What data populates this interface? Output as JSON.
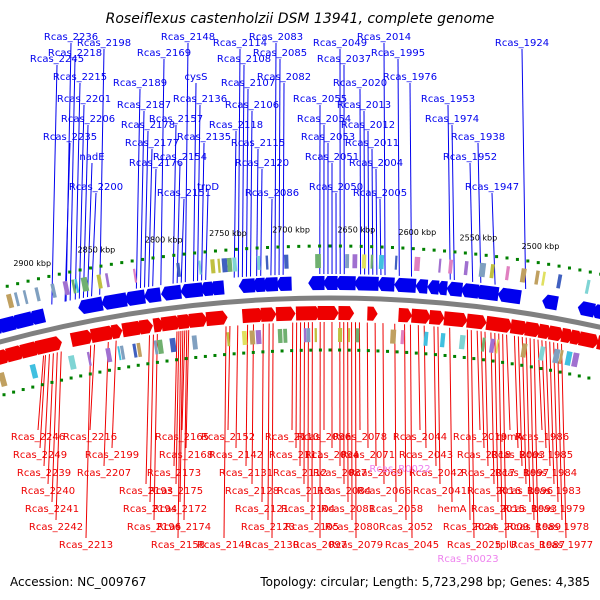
{
  "title": "Roseiflexus castenholzii DSM 13941, complete genome",
  "accession": "Accession: NC_009767",
  "summary": "Topology: circular; Length: 5,723,298 bp; Genes: 4,385",
  "colors": {
    "forward_gene": "#0000ee",
    "reverse_gene": "#ee0000",
    "rna_gene": "#ee82ee",
    "backbone": "#808080",
    "tick_dots": "#008000"
  },
  "scale_ticks": [
    "2500 kbp",
    "2550 kbp",
    "2600 kbp",
    "2650 kbp",
    "2700 kbp",
    "2750 kbp",
    "2800 kbp",
    "2850 kbp",
    "2900 kbp"
  ],
  "forward_labels": [
    {
      "text": "Rcas_2236",
      "anchor": 71
    },
    {
      "text": "Rcas_2218",
      "anchor": 75
    },
    {
      "text": "Rcas_2215",
      "anchor": 80
    },
    {
      "text": "Rcas_2201",
      "anchor": 84
    },
    {
      "text": "Rcas_2206",
      "anchor": 88
    },
    {
      "text": "Rcas_2235",
      "anchor": 70
    },
    {
      "text": "nadE",
      "anchor": 92
    },
    {
      "text": "Rcas_2200",
      "anchor": 96
    },
    {
      "text": "Rcas_2198",
      "anchor": 104
    },
    {
      "text": "Rcas_2245",
      "anchor": 57
    },
    {
      "text": "Rcas_2189",
      "anchor": 140
    },
    {
      "text": "Rcas_2187",
      "anchor": 144
    },
    {
      "text": "Rcas_2178",
      "anchor": 148
    },
    {
      "text": "Rcas_2177",
      "anchor": 152
    },
    {
      "text": "Rcas_2176",
      "anchor": 156
    },
    {
      "text": "Rcas_2151",
      "anchor": 184
    },
    {
      "text": "Rcas_2148",
      "anchor": 188
    },
    {
      "text": "Rcas_2169",
      "anchor": 164
    },
    {
      "text": "cysS",
      "anchor": 196
    },
    {
      "text": "Rcas_2136",
      "anchor": 200
    },
    {
      "text": "Rcas_2157",
      "anchor": 176
    },
    {
      "text": "Rcas_2135",
      "anchor": 204
    },
    {
      "text": "Rcas_2154",
      "anchor": 180
    },
    {
      "text": "trpD",
      "anchor": 208
    },
    {
      "text": "Rcas_2114",
      "anchor": 240
    },
    {
      "text": "Rcas_2108",
      "anchor": 244
    },
    {
      "text": "Rcas_2107",
      "anchor": 248
    },
    {
      "text": "Rcas_2106",
      "anchor": 252
    },
    {
      "text": "Rcas_2118",
      "anchor": 236
    },
    {
      "text": "Rcas_2115",
      "anchor": 258
    },
    {
      "text": "Rcas_2120",
      "anchor": 262
    },
    {
      "text": "Rcas_2086",
      "anchor": 272
    },
    {
      "text": "Rcas_2083",
      "anchor": 276
    },
    {
      "text": "Rcas_2085",
      "anchor": 280
    },
    {
      "text": "Rcas_2082",
      "anchor": 284
    },
    {
      "text": "Rcas_2055",
      "anchor": 320
    },
    {
      "text": "Rcas_2054",
      "anchor": 324
    },
    {
      "text": "Rcas_2053",
      "anchor": 328
    },
    {
      "text": "Rcas_2051",
      "anchor": 332
    },
    {
      "text": "Rcas_2050",
      "anchor": 336
    },
    {
      "text": "Rcas_2049",
      "anchor": 340
    },
    {
      "text": "Rcas_2037",
      "anchor": 344
    },
    {
      "text": "Rcas_2020",
      "anchor": 360
    },
    {
      "text": "Rcas_2013",
      "anchor": 364
    },
    {
      "text": "Rcas_2012",
      "anchor": 368
    },
    {
      "text": "Rcas_2011",
      "anchor": 372
    },
    {
      "text": "Rcas_2004",
      "anchor": 376
    },
    {
      "text": "Rcas_2005",
      "anchor": 380
    },
    {
      "text": "Rcas_2014",
      "anchor": 384
    },
    {
      "text": "Rcas_1995",
      "anchor": 398
    },
    {
      "text": "Rcas_1976",
      "anchor": 410
    },
    {
      "text": "Rcas_1953",
      "anchor": 448
    },
    {
      "text": "Rcas_1974",
      "anchor": 452
    },
    {
      "text": "Rcas_1938",
      "anchor": 478
    },
    {
      "text": "Rcas_1952",
      "anchor": 470
    },
    {
      "text": "Rcas_1947",
      "anchor": 492
    },
    {
      "text": "Rcas_1924",
      "anchor": 522
    }
  ],
  "reverse_labels": [
    {
      "text": "Rcas_2246",
      "anchor": 38
    },
    {
      "text": "Rcas_2249",
      "anchor": 40
    },
    {
      "text": "Rcas_2239",
      "anchor": 44
    },
    {
      "text": "Rcas_2240",
      "anchor": 48
    },
    {
      "text": "Rcas_2241",
      "anchor": 52
    },
    {
      "text": "Rcas_2242",
      "anchor": 56
    },
    {
      "text": "Rcas_2213",
      "anchor": 86
    },
    {
      "text": "Rcas_2216",
      "anchor": 90
    },
    {
      "text": "Rcas_2199",
      "anchor": 112
    },
    {
      "text": "Rcas_2207",
      "anchor": 104
    },
    {
      "text": "Rcas_2193",
      "anchor": 146
    },
    {
      "text": "Rcas_2194",
      "anchor": 150
    },
    {
      "text": "Rcas_2196",
      "anchor": 154
    },
    {
      "text": "Rcas_2158",
      "anchor": 178
    },
    {
      "text": "Rcas_2165",
      "anchor": 182
    },
    {
      "text": "Rcas_2168",
      "anchor": 186
    },
    {
      "text": "Rcas_2173",
      "anchor": 174
    },
    {
      "text": "Rcas_2175",
      "anchor": 176
    },
    {
      "text": "Rcas_2172",
      "anchor": 180
    },
    {
      "text": "Rcas_2174",
      "anchor": 184
    },
    {
      "text": "Rcas_2149",
      "anchor": 224
    },
    {
      "text": "Rcas_2152",
      "anchor": 228
    },
    {
      "text": "Rcas_2142",
      "anchor": 236
    },
    {
      "text": "Rcas_2131",
      "anchor": 246
    },
    {
      "text": "Rcas_2128",
      "anchor": 252
    },
    {
      "text": "Rcas_2121",
      "anchor": 262
    },
    {
      "text": "Rcas_2123",
      "anchor": 268
    },
    {
      "text": "Rcas_2130",
      "anchor": 272
    },
    {
      "text": "Rcas_2110",
      "anchor": 292
    },
    {
      "text": "Rcas_2111",
      "anchor": 296
    },
    {
      "text": "Rcas_2112",
      "anchor": 300
    },
    {
      "text": "Rcas_2113",
      "anchor": 304
    },
    {
      "text": "Rcas_2104",
      "anchor": 308
    },
    {
      "text": "Rcas_2105",
      "anchor": 312
    },
    {
      "text": "Rcas_2097",
      "anchor": 320
    },
    {
      "text": "Rcas_2096",
      "anchor": 324
    },
    {
      "text": "Rcas_2094",
      "anchor": 332
    },
    {
      "text": "Rcas_2087",
      "anchor": 340
    },
    {
      "text": "Rcas_2084",
      "anchor": 344
    },
    {
      "text": "Rcas_2081",
      "anchor": 348
    },
    {
      "text": "Rcas_2080",
      "anchor": 352
    },
    {
      "text": "Rcas_2079",
      "anchor": 356
    },
    {
      "text": "Rcas_2078",
      "anchor": 360
    },
    {
      "text": "Rcas_2071",
      "anchor": 368
    },
    {
      "text": "Rcas_2069",
      "anchor": 376
    },
    {
      "text": "Rcas_2066",
      "anchor": 384
    },
    {
      "text": "Rcas_2058",
      "anchor": 396
    },
    {
      "text": "Rcas_2052",
      "anchor": 406
    },
    {
      "text": "Rcas_2045",
      "anchor": 412
    },
    {
      "text": "Rcas_2044",
      "anchor": 420
    },
    {
      "text": "Rcas_2043",
      "anchor": 426
    },
    {
      "text": "Rcas_2042",
      "anchor": 436
    },
    {
      "text": "Rcas_2041",
      "anchor": 440
    },
    {
      "text": "hemA",
      "anchor": 452
    },
    {
      "text": "Rcas_2024",
      "anchor": 470
    },
    {
      "text": "Rcas_2025",
      "anchor": 474
    },
    {
      "text": "Rcas_2019",
      "anchor": 480
    },
    {
      "text": "Rcas_2018",
      "anchor": 484
    },
    {
      "text": "Rcas_2017",
      "anchor": 488
    },
    {
      "text": "Rcas_2016",
      "anchor": 494
    },
    {
      "text": "Rcas_2015",
      "anchor": 498
    },
    {
      "text": "Rcas_2009",
      "anchor": 502
    },
    {
      "text": "rplU",
      "anchor": 506
    },
    {
      "text": "rpmA",
      "anchor": 510
    },
    {
      "text": "Rcas_2003",
      "anchor": 518
    },
    {
      "text": "Rcas_1997",
      "anchor": 522
    },
    {
      "text": "Rcas_1996",
      "anchor": 526
    },
    {
      "text": "Rcas_1993",
      "anchor": 530
    },
    {
      "text": "Rcas_1989",
      "anchor": 534
    },
    {
      "text": "Rcas_1987",
      "anchor": 538
    },
    {
      "text": "Rcas_1986",
      "anchor": 542
    },
    {
      "text": "Rcas_1985",
      "anchor": 546
    },
    {
      "text": "Rcas_1984",
      "anchor": 550
    },
    {
      "text": "Rcas_1983",
      "anchor": 554
    },
    {
      "text": "Rcas_1979",
      "anchor": 558
    },
    {
      "text": "Rcas_1978",
      "anchor": 562
    },
    {
      "text": "Rcas_1977",
      "anchor": 566
    }
  ],
  "rna_labels": [
    {
      "text": "Rcas_R0022",
      "anchor": 400
    },
    {
      "text": "Rcas_R0023",
      "anchor": 468
    }
  ]
}
